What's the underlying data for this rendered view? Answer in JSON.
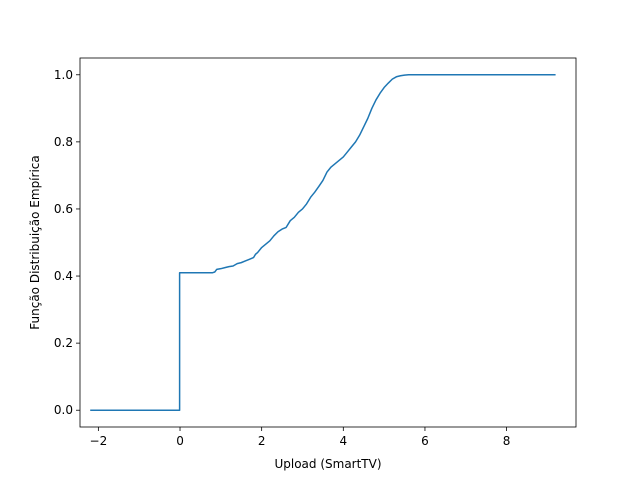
{
  "chart_data": {
    "type": "line",
    "title": "",
    "xlabel": "Upload (SmartTV)",
    "ylabel": "Função Distribuição Empírica",
    "xlim": [
      -2.45,
      9.7
    ],
    "ylim": [
      -0.05,
      1.05
    ],
    "x_ticks": [
      -2,
      0,
      2,
      4,
      6,
      8
    ],
    "x_tick_labels": [
      "−2",
      "0",
      "2",
      "4",
      "6",
      "8"
    ],
    "y_ticks": [
      0.0,
      0.2,
      0.4,
      0.6,
      0.8,
      1.0
    ],
    "y_tick_labels": [
      "0.0",
      "0.2",
      "0.4",
      "0.6",
      "0.8",
      "1.0"
    ],
    "grid": false,
    "legend": "none",
    "series": [
      {
        "color": "#1f77b4",
        "x": [
          -2.2,
          -0.01,
          -0.01,
          0.8,
          0.85,
          0.9,
          1.0,
          1.1,
          1.2,
          1.3,
          1.4,
          1.5,
          1.6,
          1.7,
          1.8,
          1.85,
          1.9,
          2.0,
          2.1,
          2.2,
          2.3,
          2.4,
          2.5,
          2.6,
          2.7,
          2.8,
          2.9,
          3.0,
          3.1,
          3.2,
          3.3,
          3.4,
          3.5,
          3.6,
          3.7,
          3.8,
          3.9,
          4.0,
          4.1,
          4.2,
          4.3,
          4.4,
          4.5,
          4.6,
          4.7,
          4.8,
          4.9,
          5.0,
          5.1,
          5.2,
          5.3,
          5.4,
          5.5,
          5.6,
          5.8,
          6.0,
          6.5,
          7.0,
          8.0,
          9.2
        ],
        "y": [
          0.0,
          0.0,
          0.41,
          0.41,
          0.412,
          0.42,
          0.422,
          0.425,
          0.428,
          0.43,
          0.437,
          0.44,
          0.445,
          0.45,
          0.455,
          0.465,
          0.47,
          0.485,
          0.495,
          0.505,
          0.52,
          0.532,
          0.54,
          0.545,
          0.565,
          0.575,
          0.59,
          0.6,
          0.615,
          0.635,
          0.65,
          0.667,
          0.685,
          0.71,
          0.725,
          0.735,
          0.745,
          0.755,
          0.77,
          0.785,
          0.8,
          0.82,
          0.845,
          0.87,
          0.9,
          0.925,
          0.945,
          0.962,
          0.975,
          0.987,
          0.994,
          0.997,
          0.999,
          1.0,
          1.0,
          1.0,
          1.0,
          1.0,
          1.0,
          1.0
        ]
      }
    ]
  }
}
